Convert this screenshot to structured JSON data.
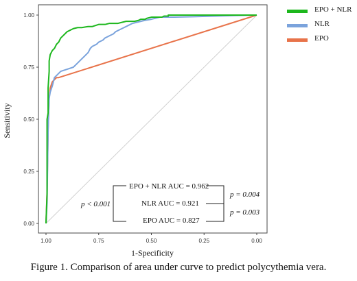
{
  "chart_data": {
    "type": "line",
    "title": "",
    "xlabel": "1-Specificity",
    "ylabel": "Sensitivity",
    "xlim": [
      1.0,
      0.0
    ],
    "ylim": [
      0.0,
      1.0
    ],
    "x_reversed": true,
    "xticks": [
      "1.00",
      "0.75",
      "0.50",
      "0.25",
      "0.00"
    ],
    "yticks": [
      "0.00",
      "0.25",
      "0.50",
      "0.75",
      "1.00"
    ],
    "grid": false,
    "legend_position": "right",
    "reference_line": "diagonal",
    "series": [
      {
        "name": "EPO + NLR",
        "color": "#1db71d",
        "x": [
          1.0,
          0.995,
          0.995,
          0.99,
          0.99,
          0.985,
          0.985,
          0.98,
          0.975,
          0.97,
          0.96,
          0.955,
          0.95,
          0.94,
          0.935,
          0.93,
          0.92,
          0.91,
          0.9,
          0.88,
          0.87,
          0.85,
          0.83,
          0.8,
          0.78,
          0.75,
          0.72,
          0.7,
          0.68,
          0.66,
          0.64,
          0.62,
          0.6,
          0.58,
          0.56,
          0.55,
          0.53,
          0.52,
          0.5,
          0.47,
          0.45,
          0.44,
          0.42,
          0.42,
          0.0
        ],
        "y": [
          0.0,
          0.14,
          0.5,
          0.53,
          0.65,
          0.73,
          0.78,
          0.81,
          0.82,
          0.83,
          0.84,
          0.85,
          0.86,
          0.87,
          0.88,
          0.89,
          0.9,
          0.91,
          0.92,
          0.93,
          0.935,
          0.94,
          0.94,
          0.945,
          0.945,
          0.955,
          0.955,
          0.96,
          0.96,
          0.96,
          0.965,
          0.97,
          0.97,
          0.97,
          0.975,
          0.98,
          0.98,
          0.985,
          0.99,
          0.99,
          0.99,
          0.995,
          0.995,
          1.0,
          1.0
        ]
      },
      {
        "name": "NLR",
        "color": "#7ba3dc",
        "x": [
          1.0,
          0.995,
          0.99,
          0.985,
          0.98,
          0.97,
          0.96,
          0.95,
          0.93,
          0.9,
          0.87,
          0.85,
          0.83,
          0.82,
          0.8,
          0.79,
          0.78,
          0.76,
          0.75,
          0.73,
          0.72,
          0.7,
          0.68,
          0.67,
          0.65,
          0.63,
          0.61,
          0.59,
          0.57,
          0.55,
          0.53,
          0.5,
          0.48,
          0.46,
          0.43,
          0.4,
          0.3,
          0.2,
          0.1,
          0.0
        ],
        "y": [
          0.0,
          0.1,
          0.45,
          0.6,
          0.63,
          0.66,
          0.7,
          0.71,
          0.73,
          0.74,
          0.75,
          0.77,
          0.79,
          0.8,
          0.82,
          0.84,
          0.85,
          0.86,
          0.87,
          0.88,
          0.89,
          0.9,
          0.91,
          0.92,
          0.93,
          0.94,
          0.95,
          0.96,
          0.965,
          0.97,
          0.975,
          0.98,
          0.985,
          0.99,
          0.99,
          0.99,
          0.992,
          0.995,
          0.998,
          1.0
        ]
      },
      {
        "name": "EPO",
        "color": "#e8734a",
        "x": [
          1.0,
          0.995,
          0.99,
          0.985,
          0.98,
          0.97,
          0.96,
          0.95,
          0.94,
          0.0
        ],
        "y": [
          0.0,
          0.15,
          0.45,
          0.6,
          0.65,
          0.68,
          0.69,
          0.7,
          0.7,
          1.0
        ]
      }
    ],
    "annotations": {
      "epo_nlr_auc": "EPO + NLR AUC = 0.962",
      "nlr_auc": "NLR AUC = 0.921",
      "epo_auc": "EPO AUC = 0.827",
      "p_epo_nlr_vs_nlr": "p = 0.004",
      "p_nlr_vs_epo": "p = 0.003",
      "p_epo_nlr_vs_epo": "p < 0.001"
    }
  },
  "caption": "Figure 1. Comparison of area under curve to predict polycythemia vera."
}
